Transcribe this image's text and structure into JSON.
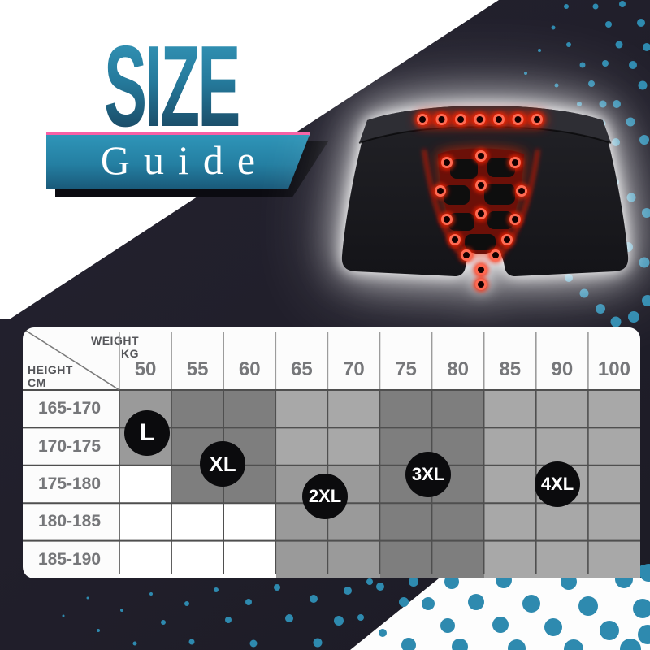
{
  "logo": {
    "title": "SIZE",
    "subtitle": "Guide"
  },
  "product": {
    "description": "black magnetic therapy boxer briefs with glowing red dots"
  },
  "table": {
    "corner_top": "WEIGHT\nKG",
    "corner_bottom": "HEIGHT\nCM",
    "weights": [
      "50",
      "55",
      "60",
      "65",
      "70",
      "75",
      "80",
      "85",
      "90",
      "100"
    ],
    "heights": [
      "165-170",
      "170-175",
      "175-180",
      "180-185",
      "185-190"
    ]
  },
  "chart_data": {
    "type": "table",
    "title": "Size Guide",
    "columns_label": "WEIGHT KG",
    "rows_label": "HEIGHT CM",
    "weights_kg": [
      50,
      55,
      60,
      65,
      70,
      75,
      80,
      85,
      90,
      100
    ],
    "heights_cm": [
      "165-170",
      "170-175",
      "175-180",
      "180-185",
      "185-190"
    ],
    "sizes": [
      {
        "label": "L",
        "weight_kg": "50",
        "height_cm": "165-175"
      },
      {
        "label": "XL",
        "weight_kg": "55-60",
        "height_cm": "170-180"
      },
      {
        "label": "2XL",
        "weight_kg": "65-70",
        "height_cm": "175-185"
      },
      {
        "label": "3XL",
        "weight_kg": "75-80",
        "height_cm": "175-180"
      },
      {
        "label": "4XL",
        "weight_kg": "90",
        "height_cm": "175-180"
      }
    ],
    "shading_legend": {
      "0": "white",
      "1": "light-gray",
      "2": "medium-gray",
      "3": "dark-gray"
    },
    "cell_shading": [
      [
        2,
        3,
        3,
        1,
        1,
        3,
        3,
        1,
        1,
        1
      ],
      [
        2,
        3,
        3,
        1,
        1,
        3,
        3,
        1,
        1,
        1
      ],
      [
        0,
        3,
        3,
        2,
        2,
        3,
        3,
        1,
        1,
        1
      ],
      [
        0,
        0,
        0,
        2,
        2,
        3,
        3,
        1,
        1,
        1
      ],
      [
        0,
        0,
        0,
        2,
        2,
        3,
        3,
        1,
        1,
        1
      ]
    ]
  },
  "colors": {
    "accent_teal": "#2e8aaf",
    "dark_background": "#211f2b",
    "pink_accent": "#f760a5",
    "cell_dark": "#7e7e7e",
    "cell_medium": "#9a9a9a",
    "cell_light": "#a8a8a8",
    "badge_black": "#0b0b0d",
    "red_glow": "#ff2a12"
  }
}
